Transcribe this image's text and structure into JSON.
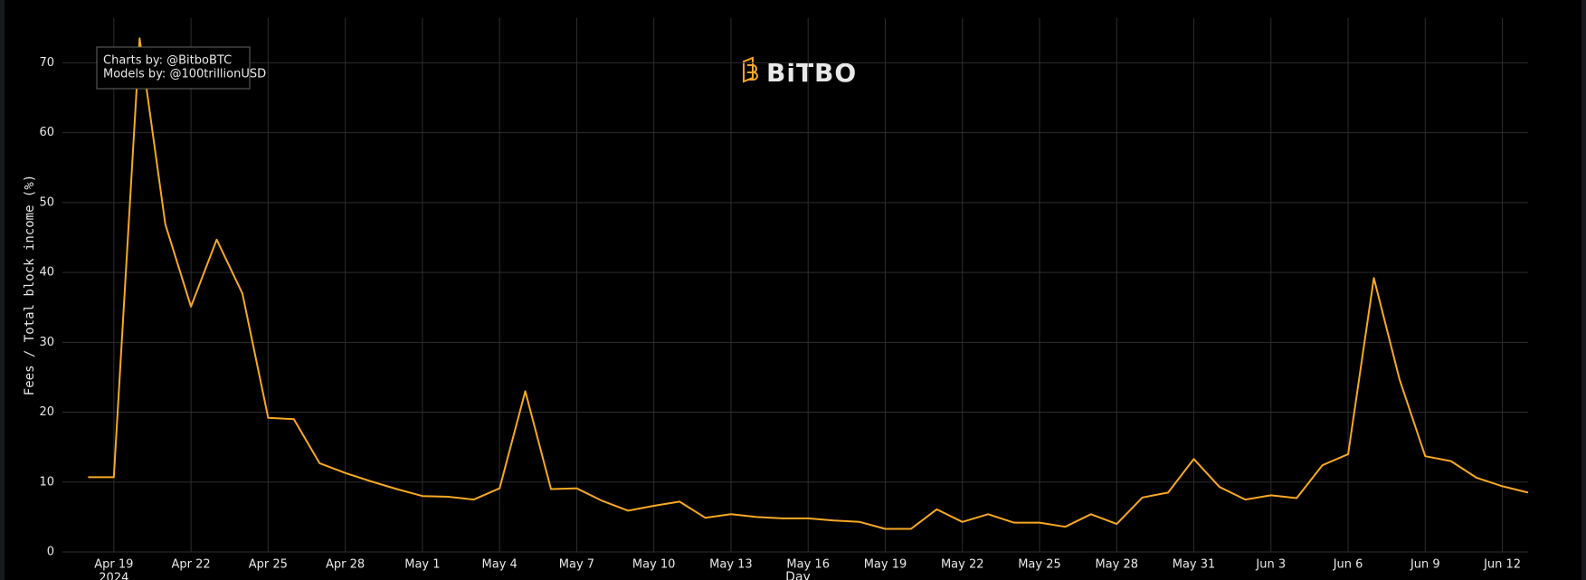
{
  "chart_data": {
    "type": "line",
    "watermark": [
      "Charts by: @BitboBTC",
      "Models by: @100trillionUSD"
    ],
    "logo": "BiTBO",
    "y_label": "Fees / Total block income (%)",
    "x_label": "Day",
    "xtick_year": "2024",
    "x": [
      "2024-04-18",
      "2024-04-19",
      "2024-04-20",
      "2024-04-21",
      "2024-04-22",
      "2024-04-23",
      "2024-04-24",
      "2024-04-25",
      "2024-04-26",
      "2024-04-27",
      "2024-04-28",
      "2024-04-29",
      "2024-04-30",
      "2024-05-01",
      "2024-05-02",
      "2024-05-03",
      "2024-05-04",
      "2024-05-05",
      "2024-05-06",
      "2024-05-07",
      "2024-05-08",
      "2024-05-09",
      "2024-05-10",
      "2024-05-11",
      "2024-05-12",
      "2024-05-13",
      "2024-05-14",
      "2024-05-15",
      "2024-05-16",
      "2024-05-17",
      "2024-05-18",
      "2024-05-19",
      "2024-05-20",
      "2024-05-21",
      "2024-05-22",
      "2024-05-23",
      "2024-05-24",
      "2024-05-25",
      "2024-05-26",
      "2024-05-27",
      "2024-05-28",
      "2024-05-29",
      "2024-05-30",
      "2024-05-31",
      "2024-06-01",
      "2024-06-02",
      "2024-06-03",
      "2024-06-04",
      "2024-06-05",
      "2024-06-06",
      "2024-06-07",
      "2024-06-08",
      "2024-06-09",
      "2024-06-10",
      "2024-06-11",
      "2024-06-12",
      "2024-06-13"
    ],
    "series": [
      {
        "name": "Fees / Total block income",
        "color": "#f7a823",
        "values": [
          10.7,
          10.7,
          73.5,
          46.9,
          35.1,
          44.7,
          37.0,
          19.2,
          19.0,
          12.7,
          11.3,
          10.1,
          9.0,
          8.0,
          7.9,
          7.5,
          9.1,
          23.0,
          9.0,
          9.1,
          7.3,
          5.9,
          6.6,
          7.2,
          4.9,
          5.4,
          5.0,
          4.8,
          4.8,
          4.5,
          4.3,
          3.3,
          3.3,
          6.1,
          4.3,
          5.4,
          4.2,
          4.2,
          3.6,
          5.4,
          4.0,
          7.8,
          8.5,
          13.3,
          9.3,
          7.5,
          8.1,
          7.7,
          12.4,
          14.0,
          39.2,
          24.7,
          13.7,
          13.0,
          10.6,
          9.4,
          8.5
        ]
      }
    ],
    "xlim": [
      "2024-04-17",
      "2024-06-13"
    ],
    "xticks": [
      {
        "value": "2024-04-19",
        "label": "Apr 19"
      },
      {
        "value": "2024-04-22",
        "label": "Apr 22"
      },
      {
        "value": "2024-04-25",
        "label": "Apr 25"
      },
      {
        "value": "2024-04-28",
        "label": "Apr 28"
      },
      {
        "value": "2024-05-01",
        "label": "May 1"
      },
      {
        "value": "2024-05-04",
        "label": "May 4"
      },
      {
        "value": "2024-05-07",
        "label": "May 7"
      },
      {
        "value": "2024-05-10",
        "label": "May 10"
      },
      {
        "value": "2024-05-13",
        "label": "May 13"
      },
      {
        "value": "2024-05-16",
        "label": "May 16"
      },
      {
        "value": "2024-05-19",
        "label": "May 19"
      },
      {
        "value": "2024-05-22",
        "label": "May 22"
      },
      {
        "value": "2024-05-25",
        "label": "May 25"
      },
      {
        "value": "2024-05-28",
        "label": "May 28"
      },
      {
        "value": "2024-05-31",
        "label": "May 31"
      },
      {
        "value": "2024-06-03",
        "label": "Jun 3"
      },
      {
        "value": "2024-06-06",
        "label": "Jun 6"
      },
      {
        "value": "2024-06-09",
        "label": "Jun 9"
      },
      {
        "value": "2024-06-12",
        "label": "Jun 12"
      }
    ],
    "ylim": [
      0,
      76.4
    ],
    "yticks": [
      0,
      10,
      20,
      30,
      40,
      50,
      60,
      70
    ],
    "grid": true
  }
}
